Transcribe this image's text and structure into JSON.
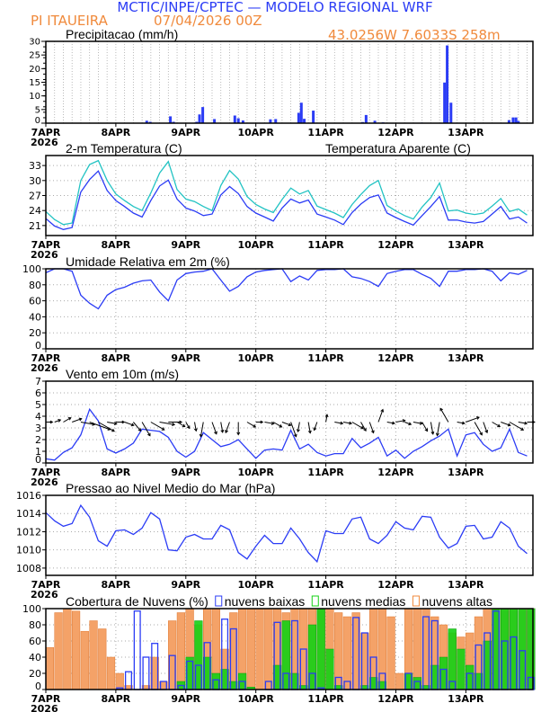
{
  "header": {
    "title": "MCTIC/INPE/CPTEC — MODELO REGIONAL WRF",
    "location": "PI ITAUEIRA",
    "run": "07/04/2026 00Z",
    "coords": "43.0256W 7.6033S 258m"
  },
  "colors": {
    "title": "#2b3cf5",
    "orange": "#f08a3c",
    "teal": "#22c3c3",
    "blue": "#2b3cf5",
    "green": "#14d014",
    "cloud_high": "#f4a268"
  },
  "x_axis": {
    "labels": [
      "7APR",
      "8APR",
      "9APR",
      "10APR",
      "11APR",
      "12APR",
      "13APR"
    ],
    "year": "2026",
    "hours_span": [
      0,
      167
    ],
    "step_hours": 3
  },
  "chart_data": [
    {
      "type": "bar",
      "title": "Precipitacao (mm/h)",
      "ylim": [
        0,
        30
      ],
      "points": [
        [
          34.6,
          0.9
        ],
        [
          35.8,
          0.5
        ],
        [
          42.7,
          2.5
        ],
        [
          43.8,
          0.5
        ],
        [
          51.7,
          0.5
        ],
        [
          52.7,
          3.2
        ],
        [
          53.8,
          5.9
        ],
        [
          57.8,
          1.5
        ],
        [
          64.8,
          2.8
        ],
        [
          66,
          1.8
        ],
        [
          67.6,
          1.0
        ],
        [
          77,
          1.4
        ],
        [
          78.8,
          1.5
        ],
        [
          86.7,
          3.8
        ],
        [
          87.6,
          7.5
        ],
        [
          88.6,
          1.6
        ],
        [
          91.7,
          4.6
        ],
        [
          108.6,
          0.4
        ],
        [
          109.8,
          3.0
        ],
        [
          112.8,
          0.9
        ],
        [
          115.6,
          0.3
        ],
        [
          128.9,
          0.2
        ],
        [
          136.7,
          14.9
        ],
        [
          137.6,
          28.5
        ],
        [
          138.9,
          7.5
        ],
        [
          158.8,
          1.1
        ],
        [
          160.2,
          2.1
        ],
        [
          161.2,
          2.1
        ],
        [
          162,
          0.8
        ]
      ]
    },
    {
      "type": "line",
      "title": "2-m Temperatura (C)",
      "ylim": [
        19,
        35
      ],
      "yticks": [
        21,
        24,
        27,
        30,
        33
      ],
      "series": [
        {
          "name": "2-m Temperatura (C)",
          "values": [
            22.4,
            20.9,
            20.2,
            20.6,
            27.7,
            30.2,
            31.9,
            28.0,
            26.0,
            24.8,
            23.5,
            22.7,
            26.0,
            28.9,
            30.1,
            26.3,
            24.5,
            23.9,
            23.0,
            23.3,
            27.1,
            28.8,
            27.4,
            24.8,
            23.5,
            22.7,
            21.9,
            24.5,
            26.3,
            25.5,
            26.1,
            23.3,
            22.7,
            22.1,
            21.2,
            23.6,
            25.3,
            26.6,
            27.1,
            23.5,
            22.6,
            21.8,
            21.1,
            23.0,
            24.8,
            26.8,
            22.1,
            22.1,
            21.7,
            21.5,
            21.8,
            23.3,
            24.8,
            22.3,
            22.7,
            21.5
          ]
        },
        {
          "name": "Temperatura Aparente (C)",
          "values": [
            23.8,
            22.2,
            21.2,
            21.5,
            30.0,
            33.2,
            34.0,
            30.0,
            27.3,
            26.0,
            24.8,
            24.0,
            27.5,
            31.5,
            33.8,
            28.2,
            26.3,
            25.8,
            24.8,
            24.0,
            29.0,
            32.0,
            30.3,
            26.8,
            25.2,
            24.3,
            23.6,
            26.2,
            28.5,
            27.3,
            28.0,
            24.9,
            24.2,
            23.5,
            22.6,
            25.2,
            27.2,
            29.0,
            30.0,
            25.0,
            23.9,
            23.0,
            22.3,
            24.7,
            26.6,
            29.5,
            23.9,
            24.1,
            23.5,
            23.2,
            23.5,
            24.9,
            26.4,
            23.8,
            24.3,
            23.1
          ]
        }
      ]
    },
    {
      "type": "line",
      "title": "Umidade Relativa em 2m (%)",
      "ylim": [
        0,
        100
      ],
      "yticks": [
        0,
        20,
        40,
        60,
        80,
        100
      ],
      "series": [
        {
          "name": "Umidade Relativa em 2m (%)",
          "values": [
            95,
            100,
            100,
            97,
            67,
            57,
            50,
            67,
            74,
            77,
            82,
            85,
            86,
            71,
            60,
            86,
            94,
            96,
            97,
            100,
            86,
            72,
            78,
            90,
            96,
            98,
            99,
            100,
            84,
            91,
            86,
            98,
            99,
            99,
            100,
            90,
            88,
            84,
            78,
            94,
            97,
            99,
            99,
            93,
            88,
            78,
            97,
            97,
            99,
            99,
            100,
            97,
            85,
            95,
            93,
            98
          ]
        }
      ]
    },
    {
      "type": "line",
      "title": "Vento em 10m (m/s)",
      "ylim": [
        0,
        7
      ],
      "yticks": [
        0,
        1,
        2,
        3,
        4,
        5,
        6,
        7
      ],
      "arrow_base": 3.5,
      "series": [
        {
          "name": "Vento em 10m (m/s)",
          "values": [
            0.35,
            0.25,
            0.9,
            1.3,
            2.4,
            4.6,
            3.6,
            1.2,
            0.85,
            1.2,
            1.7,
            2.9,
            2.8,
            2.7,
            2.2,
            1.0,
            0.5,
            1.0,
            2.6,
            2.0,
            1.4,
            1.6,
            2.0,
            1.2,
            0.4,
            1.1,
            1.2,
            1.1,
            2.8,
            1.2,
            1.6,
            0.9,
            0.6,
            0.8,
            0.8,
            2.1,
            1.3,
            1.7,
            2.2,
            0.6,
            1.1,
            0.4,
            1.0,
            1.4,
            1.9,
            2.3,
            2.9,
            0.6,
            2.4,
            2.6,
            1.6,
            1.0,
            1.3,
            2.9,
            0.9,
            0.6
          ]
        }
      ],
      "wind_direction_deg": [
        270,
        250,
        240,
        250,
        280,
        290,
        300,
        280,
        270,
        290,
        320,
        330,
        300,
        280,
        270,
        300,
        330,
        350,
        10,
        340,
        350,
        20,
        0,
        300,
        270,
        280,
        300,
        290,
        340,
        10,
        350,
        20,
        190,
        280,
        280,
        300,
        330,
        340,
        200,
        280,
        260,
        290,
        280,
        330,
        350,
        10,
        150,
        280,
        250,
        330,
        340,
        300,
        290,
        300,
        280,
        270
      ]
    },
    {
      "type": "line",
      "title": "Pressao ao Nivel Medio do Mar (hPa)",
      "ylim": [
        1007.2,
        1016
      ],
      "yticks": [
        1008,
        1010,
        1012,
        1014,
        1016
      ],
      "series": [
        {
          "name": "Pressao ao Nivel Medio do Mar (hPa)",
          "values": [
            1014.1,
            1013.2,
            1012.6,
            1012.9,
            1014.9,
            1013.6,
            1011.0,
            1010.4,
            1012.1,
            1012.2,
            1011.7,
            1012.4,
            1014.1,
            1013.4,
            1010.0,
            1009.9,
            1011.4,
            1011.7,
            1011.2,
            1011.2,
            1012.7,
            1012.2,
            1009.7,
            1009.0,
            1010.4,
            1011.6,
            1010.7,
            1010.7,
            1012.4,
            1011.2,
            1009.7,
            1008.7,
            1012.1,
            1011.8,
            1011.8,
            1013.4,
            1013.6,
            1011.2,
            1010.7,
            1011.6,
            1013.1,
            1012.4,
            1012.2,
            1013.7,
            1013.6,
            1011.4,
            1010.2,
            1010.7,
            1012.6,
            1012.7,
            1011.2,
            1011.4,
            1013.1,
            1012.4,
            1010.4,
            1009.6
          ]
        }
      ]
    },
    {
      "type": "bar",
      "title": "Cobertura de Nuvens (%)",
      "ylim": [
        0,
        100
      ],
      "yticks": [
        0,
        20,
        40,
        60,
        80,
        100
      ],
      "series": [
        {
          "name": "nuvens altas",
          "values": [
            52,
            95,
            100,
            97,
            72,
            85,
            75,
            40,
            20,
            5,
            0,
            5,
            40,
            10,
            85,
            95,
            100,
            80,
            100,
            100,
            50,
            95,
            100,
            100,
            100,
            100,
            100,
            95,
            100,
            100,
            100,
            100,
            100,
            95,
            90,
            95,
            70,
            100,
            100,
            90,
            20,
            100,
            100,
            100,
            90,
            80,
            70,
            65,
            70,
            90,
            100,
            100,
            100,
            100,
            100,
            100
          ]
        },
        {
          "name": "nuvens medias",
          "values": [
            0,
            0,
            0,
            0,
            0,
            0,
            0,
            0,
            0,
            0,
            0,
            0,
            0,
            0,
            0,
            10,
            40,
            85,
            40,
            20,
            25,
            10,
            20,
            3,
            0,
            0,
            30,
            85,
            20,
            5,
            80,
            100,
            50,
            5,
            0,
            0,
            5,
            15,
            10,
            0,
            0,
            20,
            15,
            5,
            30,
            40,
            75,
            50,
            30,
            20,
            60,
            100,
            100,
            100,
            100,
            100
          ]
        },
        {
          "name": "nuvens baixas",
          "values": [
            0,
            0,
            0,
            0,
            0,
            0,
            0,
            0,
            2,
            22,
            97,
            40,
            57,
            10,
            42,
            5,
            35,
            30,
            58,
            12,
            87,
            75,
            10,
            0,
            0,
            10,
            83,
            20,
            85,
            50,
            20,
            2,
            0,
            15,
            10,
            89,
            70,
            40,
            20,
            0,
            0,
            20,
            10,
            90,
            85,
            25,
            10,
            0,
            20,
            55,
            70,
            97,
            60,
            65,
            48,
            15
          ]
        }
      ]
    }
  ]
}
